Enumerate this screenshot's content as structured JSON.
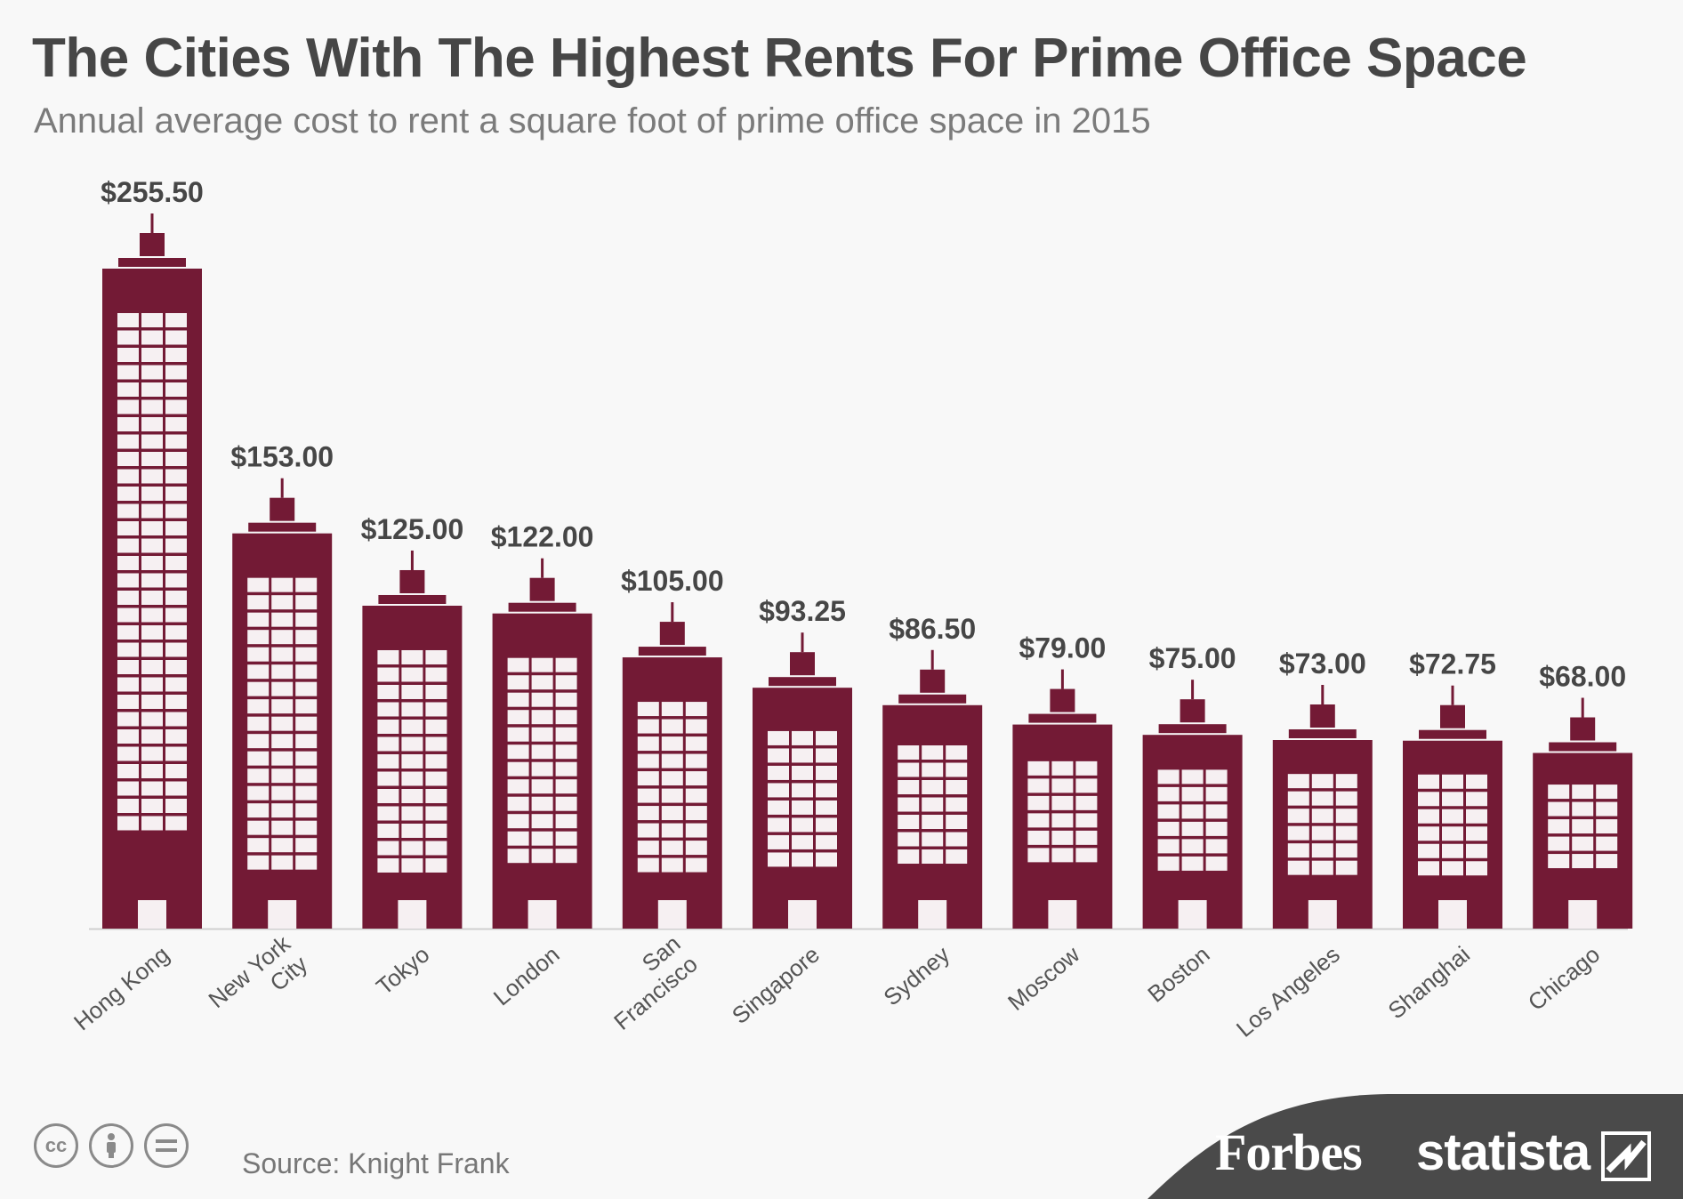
{
  "header": {
    "title": "The Cities With The Highest Rents For Prime Office Space",
    "subtitle": "Annual average cost to rent a square foot of prime office space in 2015"
  },
  "chart_data": {
    "type": "bar",
    "title": "The Cities With The Highest Rents For Prime Office Space",
    "subtitle": "Annual average cost to rent a square foot of prime office space in 2015",
    "categories": [
      "Hong Kong",
      "New York City",
      "Tokyo",
      "London",
      "San Francisco",
      "Singapore",
      "Sydney",
      "Moscow",
      "Boston",
      "Los Angeles",
      "Shanghai",
      "Chicago"
    ],
    "category_label_lines": [
      [
        "Hong Kong"
      ],
      [
        "New York",
        "City"
      ],
      [
        "Tokyo"
      ],
      [
        "London"
      ],
      [
        "San",
        "Francisco"
      ],
      [
        "Singapore"
      ],
      [
        "Sydney"
      ],
      [
        "Moscow"
      ],
      [
        "Boston"
      ],
      [
        "Los Angeles"
      ],
      [
        "Shanghai"
      ],
      [
        "Chicago"
      ]
    ],
    "values": [
      255.5,
      153.0,
      125.0,
      122.0,
      105.0,
      93.25,
      86.5,
      79.0,
      75.0,
      73.0,
      72.75,
      68.0
    ],
    "value_labels": [
      "$255.50",
      "$153.00",
      "$125.00",
      "$122.00",
      "$105.00",
      "$93.25",
      "$86.50",
      "$79.00",
      "$75.00",
      "$73.00",
      "$72.75",
      "$68.00"
    ],
    "xlabel": "",
    "ylabel": "",
    "ylim": [
      0,
      255.5
    ],
    "grid": false,
    "legend": "none",
    "bar_style": "building"
  },
  "footer": {
    "source": "Source: Knight Frank",
    "brand1": "Forbes",
    "brand2": "statista",
    "cc_icons": [
      "cc-icon",
      "attribution-icon",
      "no-derivatives-icon"
    ]
  },
  "colors": {
    "bar": "#731a35",
    "window": "#f6f0f2",
    "title": "#464646",
    "subtitle": "#7b7b7b",
    "footer": "#4a4a4a"
  }
}
